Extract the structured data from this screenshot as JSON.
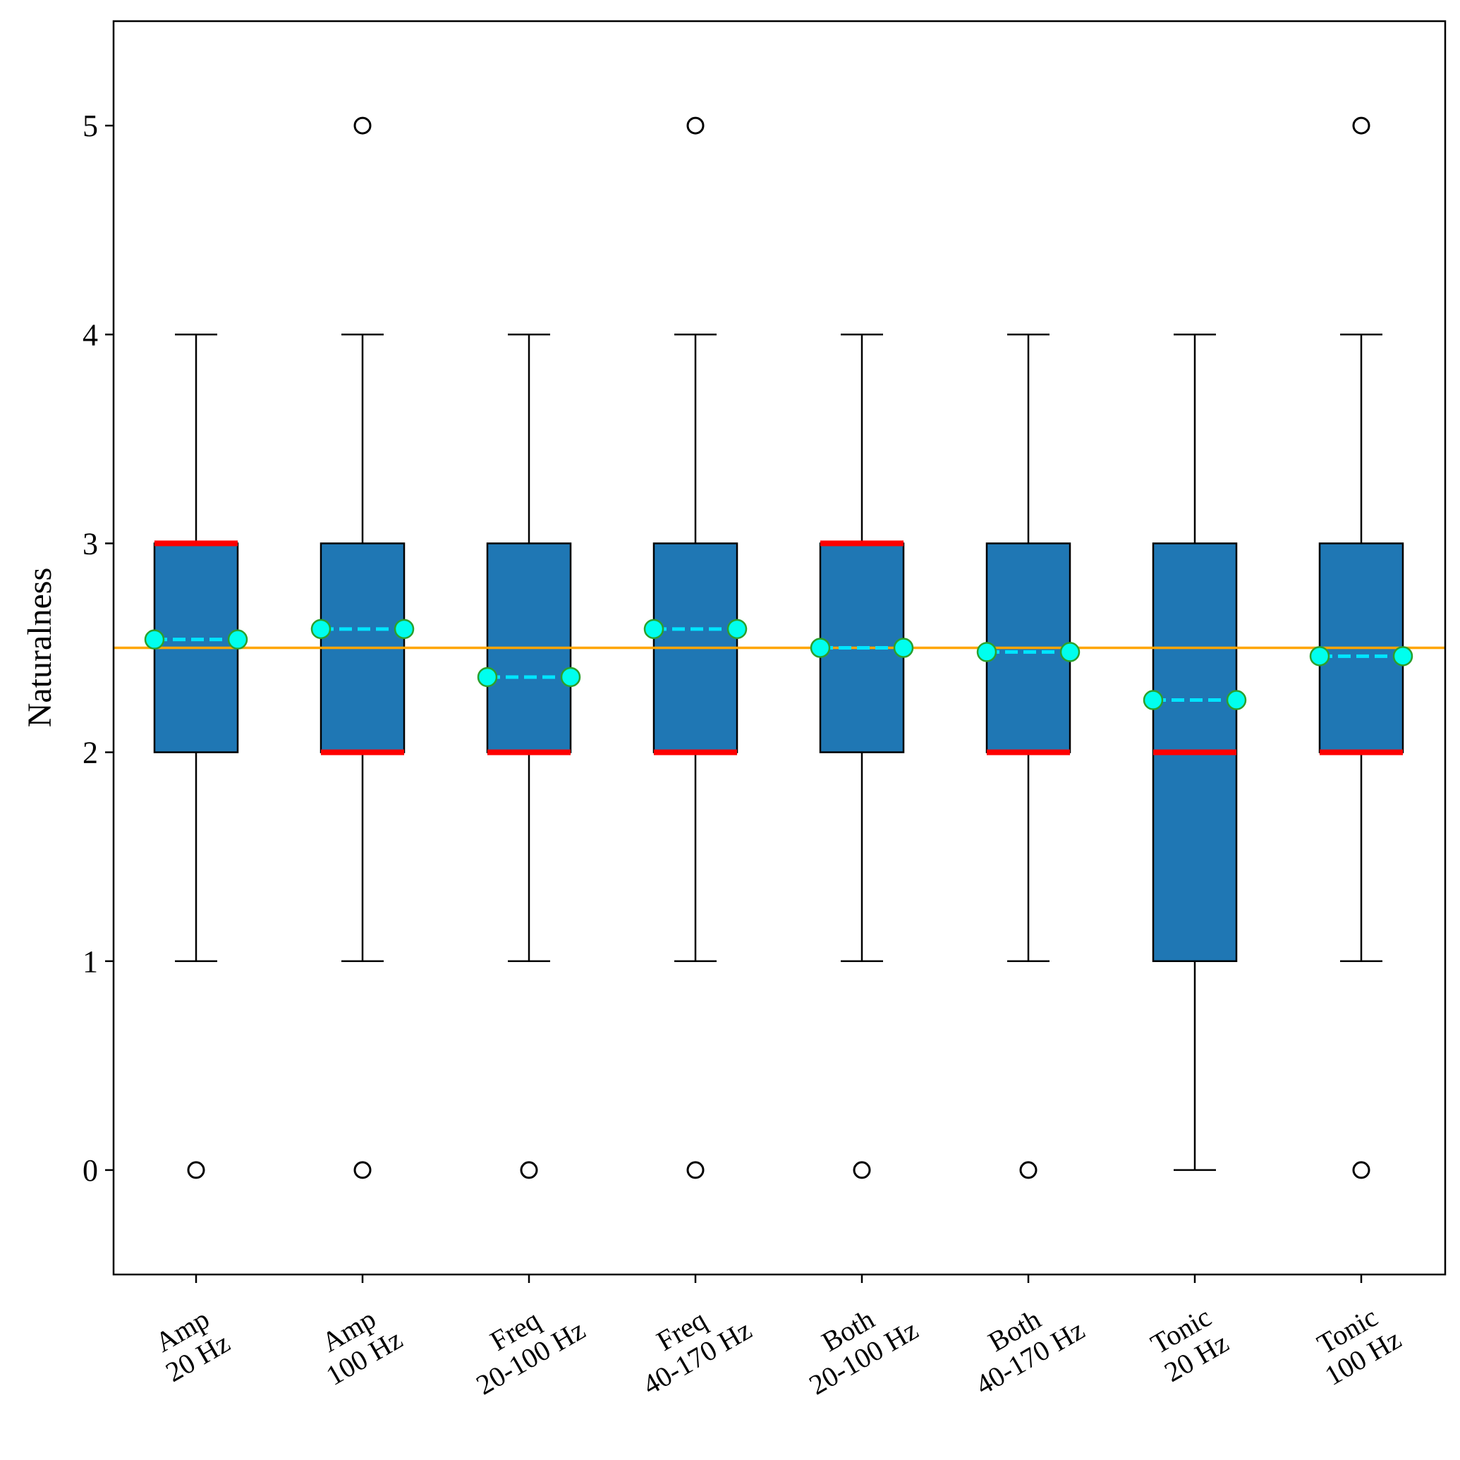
{
  "chart_data": {
    "type": "box",
    "title": "",
    "xlabel": "",
    "ylabel": "Naturalness",
    "ylim": [
      -0.5,
      5.5
    ],
    "yticks": [
      0,
      1,
      2,
      3,
      4,
      5
    ],
    "categories": [
      [
        "Amp",
        "20 Hz"
      ],
      [
        "Amp",
        "100 Hz"
      ],
      [
        "Freq",
        "20-100 Hz"
      ],
      [
        "Freq",
        "40-170 Hz"
      ],
      [
        "Both",
        "20-100 Hz"
      ],
      [
        "Both",
        "40-170 Hz"
      ],
      [
        "Tonic",
        "20 Hz"
      ],
      [
        "Tonic",
        "100 Hz"
      ]
    ],
    "boxes": [
      {
        "whisker_low": 1,
        "q1": 2,
        "median": 3,
        "q3": 3,
        "whisker_high": 4,
        "mean": 2.54,
        "outliers": [
          0
        ]
      },
      {
        "whisker_low": 1,
        "q1": 2,
        "median": 2,
        "q3": 3,
        "whisker_high": 4,
        "mean": 2.59,
        "outliers": [
          0,
          5
        ]
      },
      {
        "whisker_low": 1,
        "q1": 2,
        "median": 2,
        "q3": 3,
        "whisker_high": 4,
        "mean": 2.36,
        "outliers": [
          0
        ]
      },
      {
        "whisker_low": 1,
        "q1": 2,
        "median": 2,
        "q3": 3,
        "whisker_high": 4,
        "mean": 2.59,
        "outliers": [
          0,
          5
        ]
      },
      {
        "whisker_low": 1,
        "q1": 2,
        "median": 3,
        "q3": 3,
        "whisker_high": 4,
        "mean": 2.5,
        "outliers": [
          0
        ]
      },
      {
        "whisker_low": 1,
        "q1": 2,
        "median": 2,
        "q3": 3,
        "whisker_high": 4,
        "mean": 2.48,
        "outliers": [
          0
        ]
      },
      {
        "whisker_low": 0,
        "q1": 1,
        "median": 2,
        "q3": 3,
        "whisker_high": 4,
        "mean": 2.25,
        "outliers": []
      },
      {
        "whisker_low": 1,
        "q1": 2,
        "median": 2,
        "q3": 3,
        "whisker_high": 4,
        "mean": 2.46,
        "outliers": [
          0,
          5
        ]
      }
    ],
    "reference_line": 2.5,
    "grid": false,
    "colors": {
      "box_fill": "#1f77b4",
      "median": "#ff0000",
      "mean_line": "#00e5ff",
      "mean_marker_fill": "#00ffee",
      "mean_marker_edge": "#2ca02c",
      "reference_line": "#ffa500",
      "outline": "#000000"
    }
  }
}
